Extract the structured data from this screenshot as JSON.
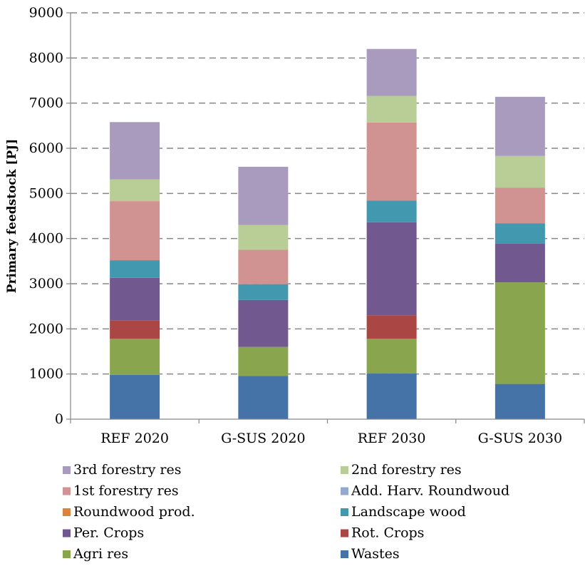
{
  "chart_data": {
    "type": "bar",
    "stacked": true,
    "categories": [
      "REF 2020",
      "G-SUS 2020",
      "REF 2030",
      "G-SUS 2030"
    ],
    "ylabel": "Primary feedstock [PJ]",
    "xlabel": "",
    "ylim": [
      0,
      9000
    ],
    "yticks": [
      0,
      1000,
      2000,
      3000,
      4000,
      5000,
      6000,
      7000,
      8000,
      9000
    ],
    "grid": "horizontal-dashed",
    "legend_position": "bottom",
    "series": [
      {
        "name": "Wastes",
        "color": "#4572a7",
        "values": [
          980,
          960,
          1010,
          780
        ]
      },
      {
        "name": "Agri res",
        "color": "#89a54e",
        "values": [
          800,
          640,
          770,
          2250
        ]
      },
      {
        "name": "Rot. Crops",
        "color": "#aa4643",
        "values": [
          410,
          0,
          520,
          0
        ]
      },
      {
        "name": "Per. Crops",
        "color": "#71588f",
        "values": [
          940,
          1040,
          2060,
          860
        ]
      },
      {
        "name": "Landscape wood",
        "color": "#4198af",
        "values": [
          390,
          350,
          480,
          450
        ]
      },
      {
        "name": "Roundwood prod.",
        "color": "#db843d",
        "values": [
          0,
          0,
          0,
          0
        ]
      },
      {
        "name": "Add. Harv. Roundwoud",
        "color": "#93a9cf",
        "values": [
          0,
          0,
          0,
          0
        ]
      },
      {
        "name": "1st forestry res",
        "color": "#d19392",
        "values": [
          1310,
          760,
          1730,
          790
        ]
      },
      {
        "name": "2nd forestry res",
        "color": "#b9cd96",
        "values": [
          480,
          550,
          590,
          700
        ]
      },
      {
        "name": "3rd forestry res",
        "color": "#a99bbd",
        "values": [
          1270,
          1290,
          1040,
          1310
        ]
      }
    ],
    "legend_order": [
      "3rd forestry res",
      "2nd forestry res",
      "1st forestry res",
      "Add. Harv. Roundwoud",
      "Roundwood prod.",
      "Landscape wood",
      "Per. Crops",
      "Rot. Crops",
      "Agri res",
      "Wastes"
    ]
  }
}
